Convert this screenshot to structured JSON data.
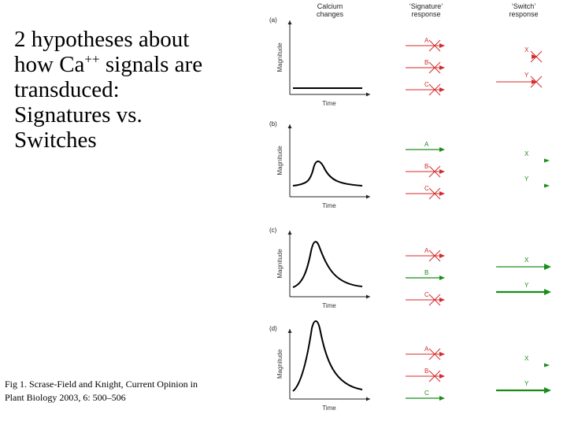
{
  "title": {
    "line1": "2 hypotheses about",
    "line2_a": "how Ca",
    "line2_sup": "++",
    "line2_b": " signals are",
    "line3": "transduced:",
    "line4": "Signatures vs.",
    "line5": "Switches"
  },
  "caption": {
    "line1": "Fig 1.  Scrase-Field and Knight, Current Opinion in",
    "line2": "Plant Biology 2003, 6: 500–506"
  },
  "figure": {
    "headers": {
      "calcium_l1": "Calcium",
      "calcium_l2": "changes",
      "signature_l1": "‘Signature’",
      "signature_l2": "response",
      "switch_l1": "‘Switch’",
      "switch_l2": "response"
    },
    "axis": {
      "y_label": "Magnitude",
      "x_label": "Time"
    },
    "colors": {
      "response": "#1a8c1a",
      "block": "#d42a2a",
      "curve": "#000000"
    },
    "panels": [
      {
        "label": "(a)",
        "calcium": "flat",
        "signature": [
          {
            "name": "A",
            "state": "blocked"
          },
          {
            "name": "B",
            "state": "blocked"
          },
          {
            "name": "C",
            "state": "blocked"
          }
        ],
        "switch": [
          {
            "name": "X",
            "state": "blocked"
          },
          {
            "name": "Y",
            "state": "blocked"
          }
        ]
      },
      {
        "label": "(b)",
        "calcium": "small peak",
        "signature": [
          {
            "name": "A",
            "state": "active"
          },
          {
            "name": "B",
            "state": "blocked"
          },
          {
            "name": "C",
            "state": "blocked"
          }
        ],
        "switch": [
          {
            "name": "X",
            "state": "weak"
          },
          {
            "name": "Y",
            "state": "weak"
          }
        ]
      },
      {
        "label": "(c)",
        "calcium": "medium peak",
        "signature": [
          {
            "name": "A",
            "state": "blocked"
          },
          {
            "name": "B",
            "state": "active"
          },
          {
            "name": "C",
            "state": "blocked"
          }
        ],
        "switch": [
          {
            "name": "X",
            "state": "active"
          },
          {
            "name": "Y",
            "state": "strong"
          }
        ]
      },
      {
        "label": "(d)",
        "calcium": "large peak",
        "signature": [
          {
            "name": "A",
            "state": "blocked"
          },
          {
            "name": "B",
            "state": "blocked"
          },
          {
            "name": "C",
            "state": "active"
          }
        ],
        "switch": [
          {
            "name": "X",
            "state": "weak"
          },
          {
            "name": "Y",
            "state": "strong"
          }
        ]
      }
    ]
  }
}
